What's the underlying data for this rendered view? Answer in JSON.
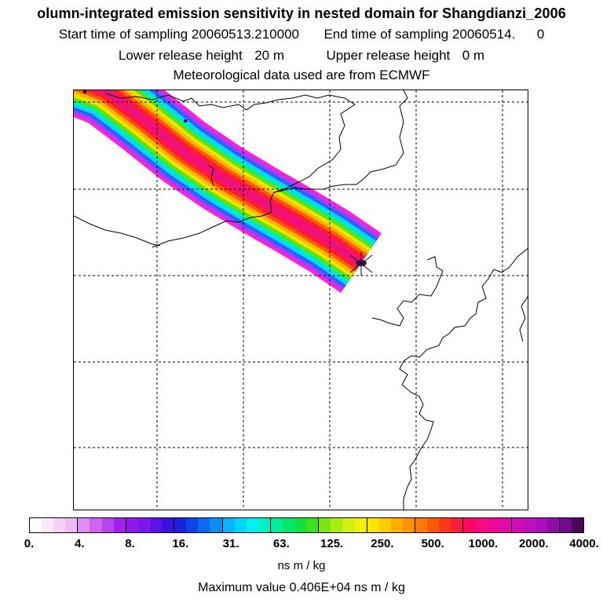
{
  "header": {
    "title": "olumn-integrated emission sensitivity in nested domain for Shangdianzi_2006",
    "start_label": "Start time of sampling",
    "start_value": "20060513.210000",
    "end_label": "End time of sampling",
    "end_value": "20060514.",
    "end_suffix": "0",
    "lower_label": "Lower release height",
    "lower_value": "20 m",
    "upper_label": "Upper release height",
    "upper_value": "0 m",
    "met_line": "Meteorological data used are from ECMWF"
  },
  "colorbar": {
    "tick_labels": [
      "0.",
      "4.",
      "8.",
      "16.",
      "31.",
      "63.",
      "125.",
      "250.",
      "500.",
      "1000.",
      "2000.",
      "4000."
    ],
    "colors": [
      "#ffffff",
      "#fbe8fb",
      "#f5d0f7",
      "#eebaf6",
      "#e08cf0",
      "#cc66ee",
      "#b844ec",
      "#a022ea",
      "#8f19ec",
      "#7a18ee",
      "#5b14e8",
      "#3b12e0",
      "#1c20e0",
      "#0c44ea",
      "#0a6af2",
      "#0a8ef6",
      "#08b6f8",
      "#00d6f8",
      "#00f0f0",
      "#00f0c8",
      "#00ec98",
      "#00e868",
      "#10e040",
      "#3ce020",
      "#78e410",
      "#aaec10",
      "#d2f010",
      "#eef200",
      "#ffe400",
      "#ffcc00",
      "#ffb000",
      "#ff9400",
      "#ff7800",
      "#ff5800",
      "#ff3a14",
      "#ff1c38",
      "#ff0a60",
      "#fa0a80",
      "#ee0a96",
      "#e00aa6",
      "#d00cb4",
      "#be0ebe",
      "#a80ebc",
      "#900ea8",
      "#700a88",
      "#4a0658"
    ],
    "units": "ns m / kg"
  },
  "max_value_text": "Maximum value  0.406E+04 ns m / kg",
  "plume_colors": [
    "#ff20d8",
    "#a040ff",
    "#2a60ff",
    "#00d8ff",
    "#00f0a0",
    "#6ce000",
    "#e8e800",
    "#ffb400",
    "#ff5a00",
    "#ff1a3c",
    "#f0107a"
  ],
  "receptor_color": "#3a1060"
}
